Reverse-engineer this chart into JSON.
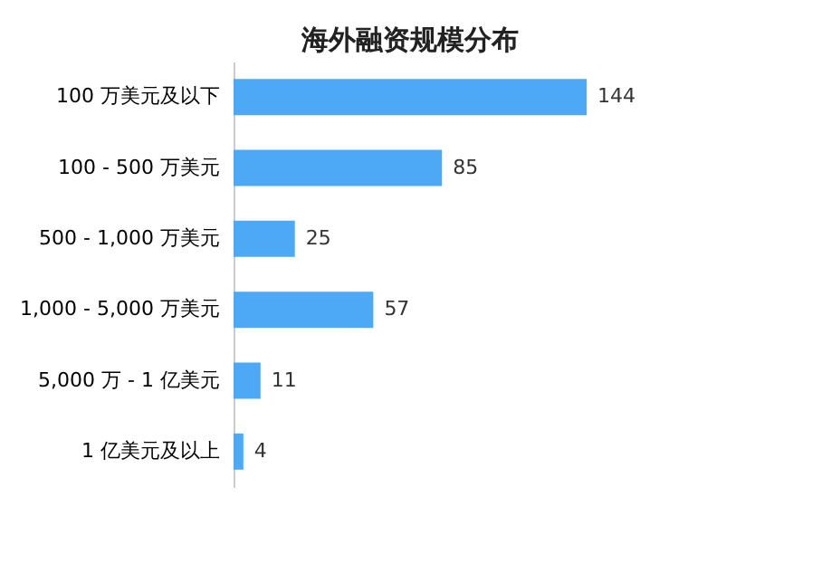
{
  "chart_data": {
    "type": "bar",
    "title": "海外融资规模分布",
    "orientation": "horizontal",
    "categories": [
      "100 万美元及以下",
      "100 - 500 万美元",
      "500 - 1,000 万美元",
      "1,000 - 5,000 万美元",
      "5,000 万 - 1 亿美元",
      "1 亿美元及以上"
    ],
    "values": [
      144,
      85,
      25,
      57,
      11,
      4
    ],
    "color": "#4da9f5",
    "data_labels": true,
    "grid": false
  }
}
